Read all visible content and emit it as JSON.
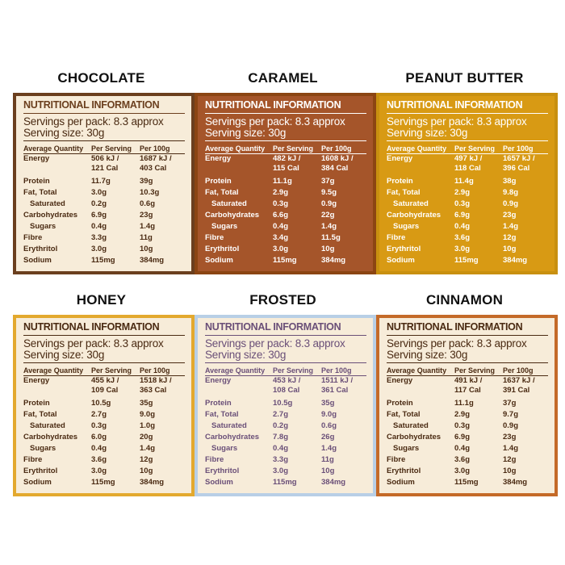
{
  "labels": {
    "title": "NUTRITIONAL INFORMATION",
    "servings": "Servings per pack: 8.3 approx",
    "size": "Serving size: 30g",
    "col_qty": "Average Quantity",
    "col_serv": "Per Serving",
    "col_100": "Per 100g"
  },
  "panels": [
    {
      "name": "CHOCOLATE",
      "energy": {
        "serv_kj": "506 kJ /",
        "serv_cal": "121 Cal",
        "g_kj": "1687 kJ /",
        "g_cal": "403 Cal"
      },
      "rows": [
        [
          "Protein",
          "11.7g",
          "39g"
        ],
        [
          "Fat, Total",
          "3.0g",
          "10.3g"
        ],
        [
          "Saturated",
          "0.2g",
          "0.6g"
        ],
        [
          "Carbohydrates",
          "6.9g",
          "23g"
        ],
        [
          "Sugars",
          "0.4g",
          "1.4g"
        ],
        [
          "Fibre",
          "3.3g",
          "11g"
        ],
        [
          "Erythritol",
          "3.0g",
          "10g"
        ],
        [
          "Sodium",
          "115mg",
          "384mg"
        ]
      ]
    },
    {
      "name": "CARAMEL",
      "energy": {
        "serv_kj": "482 kJ /",
        "serv_cal": "115 Cal",
        "g_kj": "1608 kJ /",
        "g_cal": "384 Cal"
      },
      "rows": [
        [
          "Protein",
          "11.1g",
          "37g"
        ],
        [
          "Fat, Total",
          "2.9g",
          "9.5g"
        ],
        [
          "Saturated",
          "0.3g",
          "0.9g"
        ],
        [
          "Carbohydrates",
          "6.6g",
          "22g"
        ],
        [
          "Sugars",
          "0.4g",
          "1.4g"
        ],
        [
          "Fibre",
          "3.4g",
          "11.5g"
        ],
        [
          "Erythritol",
          "3.0g",
          "10g"
        ],
        [
          "Sodium",
          "115mg",
          "384mg"
        ]
      ]
    },
    {
      "name": "PEANUT BUTTER",
      "energy": {
        "serv_kj": "497 kJ /",
        "serv_cal": "118 Cal",
        "g_kj": "1657 kJ /",
        "g_cal": "396 Cal"
      },
      "rows": [
        [
          "Protein",
          "11.4g",
          "38g"
        ],
        [
          "Fat, Total",
          "2.9g",
          "9.8g"
        ],
        [
          "Saturated",
          "0.3g",
          "0.9g"
        ],
        [
          "Carbohydrates",
          "6.9g",
          "23g"
        ],
        [
          "Sugars",
          "0.4g",
          "1.4g"
        ],
        [
          "Fibre",
          "3.6g",
          "12g"
        ],
        [
          "Erythritol",
          "3.0g",
          "10g"
        ],
        [
          "Sodium",
          "115mg",
          "384mg"
        ]
      ]
    },
    {
      "name": "HONEY",
      "energy": {
        "serv_kj": "455 kJ /",
        "serv_cal": "109 Cal",
        "g_kj": "1518 kJ /",
        "g_cal": "363 Cal"
      },
      "rows": [
        [
          "Protein",
          "10.5g",
          "35g"
        ],
        [
          "Fat, Total",
          "2.7g",
          "9.0g"
        ],
        [
          "Saturated",
          "0.3g",
          "1.0g"
        ],
        [
          "Carbohydrates",
          "6.0g",
          "20g"
        ],
        [
          "Sugars",
          "0.4g",
          "1.4g"
        ],
        [
          "Fibre",
          "3.6g",
          "12g"
        ],
        [
          "Erythritol",
          "3.0g",
          "10g"
        ],
        [
          "Sodium",
          "115mg",
          "384mg"
        ]
      ]
    },
    {
      "name": "FROSTED",
      "energy": {
        "serv_kj": "453 kJ /",
        "serv_cal": "108 Cal",
        "g_kj": "1511 kJ /",
        "g_cal": "361 Cal"
      },
      "rows": [
        [
          "Protein",
          "10.5g",
          "35g"
        ],
        [
          "Fat, Total",
          "2.7g",
          "9.0g"
        ],
        [
          "Saturated",
          "0.2g",
          "0.6g"
        ],
        [
          "Carbohydrates",
          "7.8g",
          "26g"
        ],
        [
          "Sugars",
          "0.4g",
          "1.4g"
        ],
        [
          "Fibre",
          "3.3g",
          "11g"
        ],
        [
          "Erythritol",
          "3.0g",
          "10g"
        ],
        [
          "Sodium",
          "115mg",
          "384mg"
        ]
      ]
    },
    {
      "name": "CINNAMON",
      "energy": {
        "serv_kj": "491 kJ /",
        "serv_cal": "117 Cal",
        "g_kj": "1637 kJ /",
        "g_cal": "391 Cal"
      },
      "rows": [
        [
          "Protein",
          "11.1g",
          "37g"
        ],
        [
          "Fat, Total",
          "2.9g",
          "9.7g"
        ],
        [
          "Saturated",
          "0.3g",
          "0.9g"
        ],
        [
          "Carbohydrates",
          "6.9g",
          "23g"
        ],
        [
          "Sugars",
          "0.4g",
          "1.4g"
        ],
        [
          "Fibre",
          "3.6g",
          "12g"
        ],
        [
          "Erythritol",
          "3.0g",
          "10g"
        ],
        [
          "Sodium",
          "115mg",
          "384mg"
        ]
      ]
    }
  ],
  "colors": {
    "chocolate": "#6b3f1e",
    "caramel": "#a5552a",
    "peanut_butter": "#d89a14",
    "honey": "#e3a92e",
    "frosted": "#b8cfe6",
    "cinnamon": "#c46a28",
    "cream": "#f7ecd9"
  }
}
